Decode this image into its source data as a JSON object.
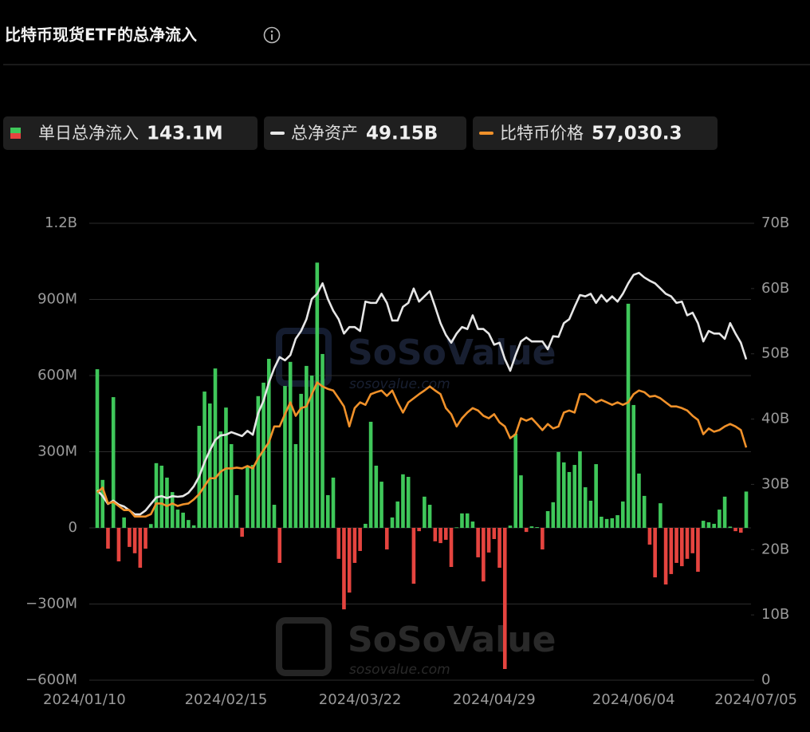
{
  "chart_data": {
    "type": "bar",
    "title": "比特币现货ETF的总净流入",
    "watermark": {
      "brand": "SoSoValue",
      "url": "sosovalue.com"
    },
    "categories": [
      "2024/01/10",
      null,
      null,
      null,
      null,
      null,
      null,
      null,
      null,
      null,
      null,
      null,
      null,
      null,
      null,
      null,
      null,
      null,
      null,
      null,
      null,
      null,
      null,
      null,
      "2024/02/15",
      null,
      null,
      null,
      null,
      null,
      null,
      null,
      null,
      null,
      null,
      null,
      null,
      null,
      null,
      null,
      null,
      null,
      null,
      null,
      null,
      null,
      null,
      null,
      null,
      "2024/03/22",
      null,
      null,
      null,
      null,
      null,
      null,
      null,
      null,
      null,
      null,
      null,
      null,
      null,
      null,
      null,
      null,
      null,
      null,
      null,
      null,
      null,
      null,
      null,
      null,
      "2024/04/29",
      null,
      null,
      null,
      null,
      null,
      null,
      null,
      null,
      null,
      null,
      null,
      null,
      null,
      null,
      null,
      null,
      null,
      null,
      null,
      null,
      null,
      null,
      null,
      null,
      null,
      "2024/06/04",
      null,
      null,
      null,
      null,
      null,
      null,
      null,
      null,
      null,
      null,
      null,
      null,
      null,
      null,
      null,
      null,
      null,
      null,
      null,
      null,
      "2024/07/05"
    ],
    "series": [
      {
        "name": "单日总净流入",
        "type": "bar",
        "color": "#3fc75a",
        "negative_color": "#e5443f",
        "latest_label": "143.1M",
        "values": [
          625,
          189,
          -82,
          515,
          -132,
          41,
          -75,
          -100,
          -157,
          -82,
          15,
          255,
          245,
          198,
          141,
          72,
          60,
          31,
          10,
          402,
          537,
          490,
          628,
          380,
          474,
          330,
          129,
          -35,
          245,
          248,
          519,
          572,
          666,
          91,
          -138,
          559,
          654,
          330,
          528,
          638,
          600,
          1045,
          685,
          129,
          198,
          -122,
          -321,
          -255,
          -138,
          -91,
          16,
          418,
          245,
          182,
          -85,
          41,
          104,
          211,
          201,
          -220,
          -13,
          123,
          91,
          -53,
          -60,
          -47,
          -154,
          2,
          57,
          57,
          25,
          -116,
          -211,
          -97,
          -44,
          -157,
          -556,
          9,
          371,
          207,
          -16,
          6,
          3,
          -85,
          66,
          101,
          299,
          258,
          220,
          248,
          302,
          160,
          107,
          251,
          44,
          35,
          38,
          50,
          104,
          883,
          484,
          214,
          126,
          -66,
          -195,
          97,
          -223,
          -182,
          -138,
          -151,
          -122,
          -100,
          -173,
          28,
          22,
          16,
          72,
          123,
          5,
          -13,
          -19,
          143.1
        ]
      },
      {
        "name": "总净资产",
        "type": "line",
        "axis": "y2",
        "color": "#e6e6e6",
        "latest_label": "49.15B",
        "values": [
          29.1,
          28.2,
          27.0,
          27.5,
          26.9,
          26.6,
          26.0,
          25.4,
          25.4,
          26.0,
          27.0,
          28.0,
          28.2,
          27.9,
          28.2,
          28.1,
          28.2,
          28.7,
          29.7,
          31.2,
          33.4,
          35.2,
          36.8,
          37.5,
          37.6,
          38.0,
          37.7,
          37.4,
          38.2,
          37.6,
          40.9,
          42.8,
          45.6,
          47.8,
          49.5,
          49.0,
          49.8,
          52.3,
          53.5,
          55.3,
          58.4,
          59.2,
          60.8,
          58.4,
          56.6,
          55.3,
          53.1,
          54.1,
          54.1,
          53.5,
          58.0,
          57.8,
          57.8,
          59.2,
          57.8,
          55.1,
          55.1,
          57.2,
          57.8,
          60.0,
          58.0,
          58.8,
          59.6,
          57.2,
          54.7,
          52.9,
          51.7,
          53.1,
          54.1,
          53.8,
          55.9,
          53.8,
          53.8,
          53.1,
          51.4,
          51.7,
          49.2,
          47.4,
          49.8,
          51.9,
          52.5,
          51.9,
          51.9,
          51.9,
          50.7,
          52.7,
          52.6,
          54.7,
          55.3,
          57.2,
          59.0,
          58.8,
          59.2,
          57.8,
          59.0,
          58.0,
          58.8,
          58.0,
          59.2,
          60.8,
          62.1,
          62.4,
          61.7,
          61.2,
          60.8,
          60.0,
          59.2,
          58.8,
          57.8,
          58.0,
          55.9,
          56.3,
          54.7,
          51.9,
          53.5,
          53.1,
          53.1,
          52.3,
          54.7,
          53.1,
          51.7,
          49.15
        ]
      },
      {
        "name": "比特币价格",
        "type": "line",
        "axis": "y3",
        "color": "#f0912a",
        "latest_label": "57,030.3",
        "values": [
          46000,
          47200,
          43300,
          43700,
          42700,
          41700,
          41700,
          40100,
          40100,
          40100,
          40700,
          43300,
          43300,
          42700,
          43300,
          42700,
          43100,
          43300,
          44300,
          45600,
          47600,
          49500,
          49500,
          51100,
          51900,
          51900,
          52100,
          51900,
          52500,
          51900,
          54400,
          56400,
          58300,
          62200,
          62200,
          65200,
          68100,
          64800,
          66700,
          67100,
          70100,
          73000,
          72000,
          71400,
          71000,
          69100,
          67100,
          62200,
          66700,
          68100,
          67500,
          70100,
          70600,
          71000,
          69700,
          71000,
          68100,
          65600,
          68100,
          69100,
          70100,
          71000,
          72000,
          71000,
          70100,
          66700,
          65200,
          62200,
          64200,
          65600,
          66700,
          66100,
          64800,
          64200,
          65200,
          63200,
          62200,
          59300,
          60300,
          64200,
          63600,
          64200,
          62800,
          61300,
          62800,
          61700,
          62200,
          65600,
          66100,
          65600,
          70100,
          70100,
          69100,
          68100,
          68700,
          68100,
          67500,
          68100,
          67500,
          68100,
          70100,
          71000,
          70600,
          69500,
          69700,
          69100,
          68100,
          67100,
          67100,
          66700,
          66100,
          64800,
          63800,
          60300,
          61700,
          60900,
          61300,
          62200,
          62800,
          62200,
          61300,
          57030.3
        ]
      }
    ],
    "ylim": [
      -600,
      1200
    ],
    "yticks": [
      {
        "value": -600,
        "label": "−600M"
      },
      {
        "value": -300,
        "label": "−300M"
      },
      0,
      {
        "value": 300,
        "label": "300M"
      },
      {
        "value": 600,
        "label": "600M"
      },
      {
        "value": 900,
        "label": "900M"
      },
      {
        "value": 1200,
        "label": "1.2B"
      }
    ],
    "y2lim": [
      0,
      70
    ],
    "y2ticks": [
      0,
      {
        "value": 10,
        "label": "10B"
      },
      {
        "value": 20,
        "label": "20B"
      },
      {
        "value": 30,
        "label": "30B"
      },
      {
        "value": 40,
        "label": "40B"
      },
      {
        "value": 50,
        "label": "50B"
      },
      {
        "value": 60,
        "label": "60B"
      },
      {
        "value": 70,
        "label": "70B"
      }
    ],
    "y3lim": [
      0,
      112000
    ],
    "grid": true
  }
}
